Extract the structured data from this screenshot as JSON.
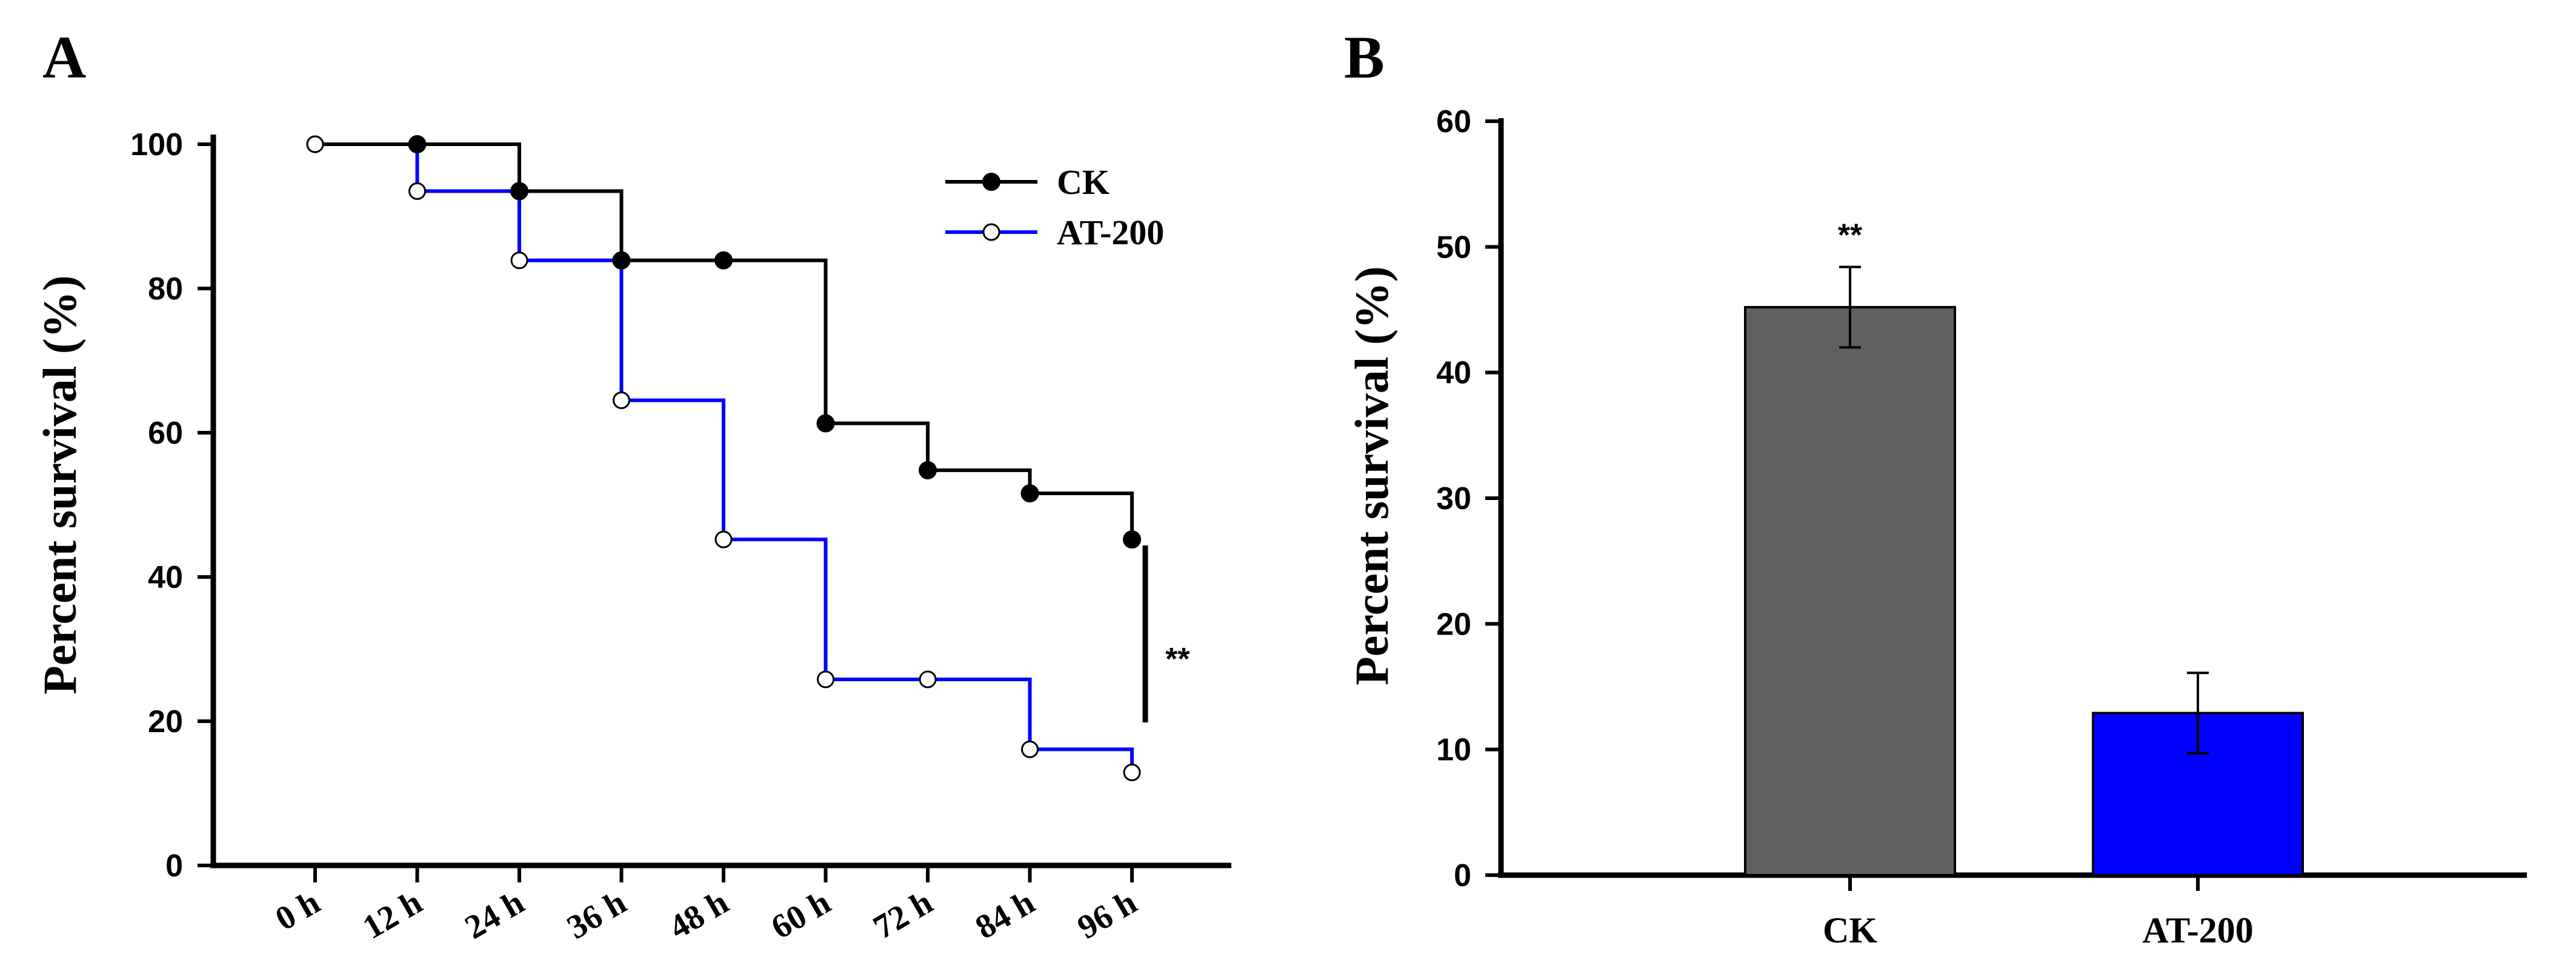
{
  "chart_data": [
    {
      "type": "line",
      "step": true,
      "panel_label": "A",
      "ylabel": "Percent survival (%)",
      "xlabel": "",
      "categories": [
        "0 h",
        "12 h",
        "24 h",
        "36 h",
        "48 h",
        "60 h",
        "72 h",
        "84 h",
        "96 h"
      ],
      "ylim": [
        0,
        100
      ],
      "yticks": [
        "0",
        "20",
        "40",
        "60",
        "80",
        "100"
      ],
      "series": [
        {
          "name": "CK",
          "marker": "filled-circle",
          "color": "#000000",
          "values": [
            100,
            100,
            93.5,
            83.9,
            83.9,
            61.3,
            54.8,
            51.6,
            45.2
          ]
        },
        {
          "name": "AT-200",
          "marker": "open-circle",
          "color": "#0000ff",
          "values": [
            100,
            93.5,
            83.9,
            64.5,
            45.2,
            25.8,
            25.8,
            16.1,
            12.9
          ]
        }
      ],
      "significance": "**",
      "legend_position": "top-right"
    },
    {
      "type": "bar",
      "panel_label": "B",
      "ylabel": "Percent survival (%)",
      "xlabel": "",
      "categories": [
        "CK",
        "AT-200"
      ],
      "values": [
        45.2,
        12.9
      ],
      "errors": [
        3.2,
        3.2
      ],
      "colors": [
        "#606060",
        "#0000ff"
      ],
      "ylim": [
        0,
        60
      ],
      "yticks": [
        "0",
        "10",
        "20",
        "30",
        "40",
        "50",
        "60"
      ],
      "significance": "**"
    }
  ]
}
